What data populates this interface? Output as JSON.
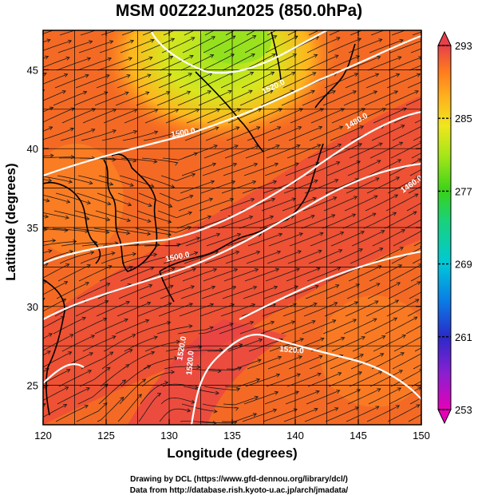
{
  "title": "MSM 00Z22Jun2025 (850.0hPa)",
  "x_axis": {
    "label": "Longitude (degrees)",
    "ticks": [
      120,
      125,
      130,
      135,
      140,
      145,
      150
    ],
    "range": [
      120,
      150
    ]
  },
  "y_axis": {
    "label": "Latitude  (degrees)",
    "ticks": [
      25,
      30,
      35,
      40,
      45
    ],
    "range": [
      22.5,
      47.5
    ]
  },
  "colorbar": {
    "ticks": [
      293,
      285,
      277,
      269,
      261,
      253
    ],
    "range": [
      253,
      293
    ],
    "colors": [
      "#e600b8",
      "#8a1fd1",
      "#2a2ac9",
      "#0a7de6",
      "#00c8d8",
      "#19d27a",
      "#39d219",
      "#a8e619",
      "#f0e61e",
      "#ffb01e",
      "#ff7a1e",
      "#ff4a2e",
      "#e8404a"
    ]
  },
  "contour_labels": [
    "1520.0",
    "1500.0",
    "1480.0",
    "1460.0",
    "1500.0",
    "1520.0",
    "1520.0",
    "1520.0"
  ],
  "credits": {
    "line1": "Drawing by DCL (https://www.gfd-dennou.org/library/dcl/)",
    "line2": "Data from http://database.rish.kyoto-u.ac.jp/arch/jmadata/"
  }
}
